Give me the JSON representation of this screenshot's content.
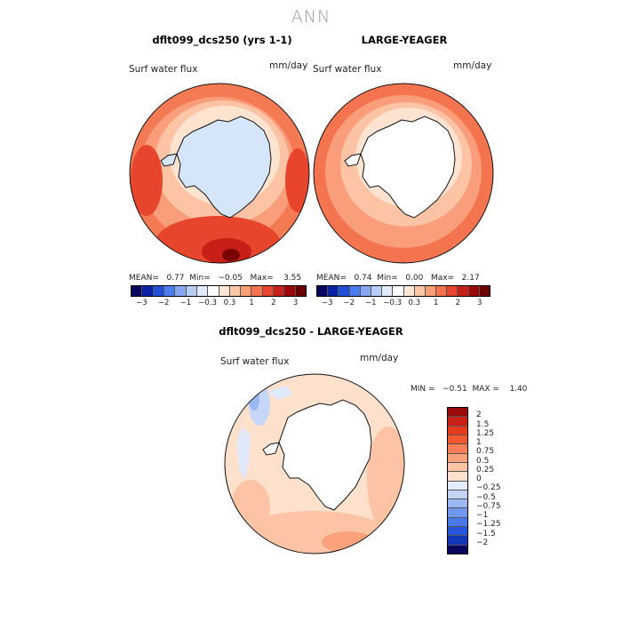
{
  "figure": {
    "title": "ANN"
  },
  "panels": [
    {
      "title": "dflt099_dcs250 (yrs 1-1)",
      "variable": "Surf water flux",
      "units": "mm/day",
      "stats_text": "MEAN=   0.77  Min=   −0.05   Max=    3.55",
      "mean": 0.77,
      "min": -0.05,
      "max": 3.55
    },
    {
      "title": "LARGE-YEAGER",
      "variable": "Surf water flux",
      "units": "mm/day",
      "stats_text": "MEAN=   0.74  Min=   0.00   Max=   2.17",
      "mean": 0.74,
      "min": 0.0,
      "max": 2.17
    },
    {
      "title": "dflt099_dcs250 - LARGE-YEAGER",
      "variable": "Surf water flux",
      "units": "mm/day",
      "stats_text": "MIN =   −0.51  MAX =    1.40",
      "min": -0.51,
      "max": 1.4
    }
  ],
  "colorbar_top": {
    "ticks": [
      "−3",
      "−2",
      "−1",
      "−0.3",
      "0.3",
      "1",
      "2",
      "3"
    ],
    "colors": [
      "#08055e",
      "#0a21a6",
      "#1f4fd6",
      "#4d7cf0",
      "#86a8f3",
      "#b9cdf6",
      "#e1ebfb",
      "#ffffff",
      "#fde6d4",
      "#fcc8a6",
      "#fa9e78",
      "#f5724c",
      "#e8452d",
      "#c82019",
      "#9a0a0a",
      "#6b0000"
    ]
  },
  "colorbar_diff": {
    "ticks": [
      "2",
      "1.5",
      "1.25",
      "1",
      "0.75",
      "0.5",
      "0.25",
      "0",
      "−0.25",
      "−0.5",
      "−0.75",
      "−1",
      "−1.25",
      "−1.5",
      "−2"
    ],
    "colors": [
      "#9a0a0a",
      "#c82019",
      "#e63a1f",
      "#f5582d",
      "#f97e57",
      "#fba27d",
      "#fdc4a4",
      "#fee2cf",
      "#e3ecfb",
      "#c2d3f6",
      "#9bb8f2",
      "#6f97ed",
      "#4a78e8",
      "#2955dd",
      "#1236b8",
      "#08055e"
    ]
  },
  "chart_data": {
    "type": "heatmap",
    "title": "ANN",
    "description_values": {
      "panel_1": {
        "mean": 0.77,
        "min": -0.05,
        "max": 3.55,
        "units": "mm/day"
      },
      "panel_2": {
        "mean": 0.74,
        "min": 0.0,
        "max": 2.17,
        "units": "mm/day"
      },
      "difference": {
        "min": -0.51,
        "max": 1.4,
        "units": "mm/day"
      }
    }
  }
}
